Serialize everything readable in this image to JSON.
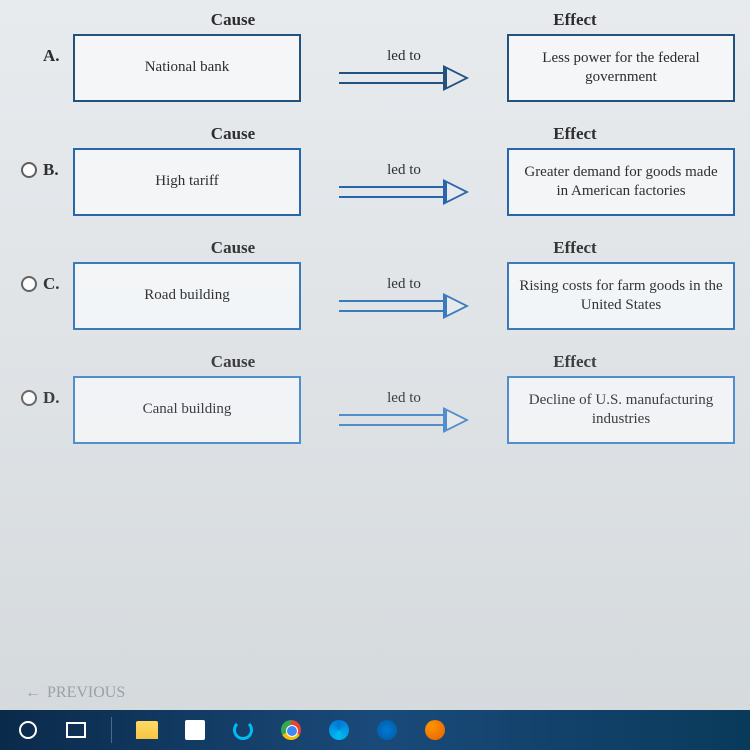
{
  "options": [
    {
      "letter": "A.",
      "has_radio": false,
      "cause_header": "Cause",
      "effect_header": "Effect",
      "cause": "National bank",
      "connector": "led to",
      "effect": "Less power for the federal government",
      "border_color": "#1a4a7a",
      "class": "option-a"
    },
    {
      "letter": "B.",
      "has_radio": true,
      "cause_header": "Cause",
      "effect_header": "Effect",
      "cause": "High tariff",
      "connector": "led to",
      "effect": "Greater demand for goods made in American factories",
      "border_color": "#1a5da8",
      "class": "option-b"
    },
    {
      "letter": "C.",
      "has_radio": true,
      "cause_header": "Cause",
      "effect_header": "Effect",
      "cause": "Road building",
      "connector": "led to",
      "effect": "Rising costs for farm goods in the United States",
      "border_color": "#2a70b8",
      "class": "option-c"
    },
    {
      "letter": "D.",
      "has_radio": true,
      "cause_header": "Cause",
      "effect_header": "Effect",
      "cause": "Canal building",
      "connector": "led to",
      "effect": "Decline of U.S. manufacturing industries",
      "border_color": "#3a80c8",
      "class": "option-d"
    }
  ],
  "previous_label": "PREVIOUS",
  "previous_arrow": "←",
  "colors": {
    "box_border": "#1a5490",
    "text": "#222222",
    "background": "#e8ebee",
    "taskbar": "#0a2a4a"
  }
}
